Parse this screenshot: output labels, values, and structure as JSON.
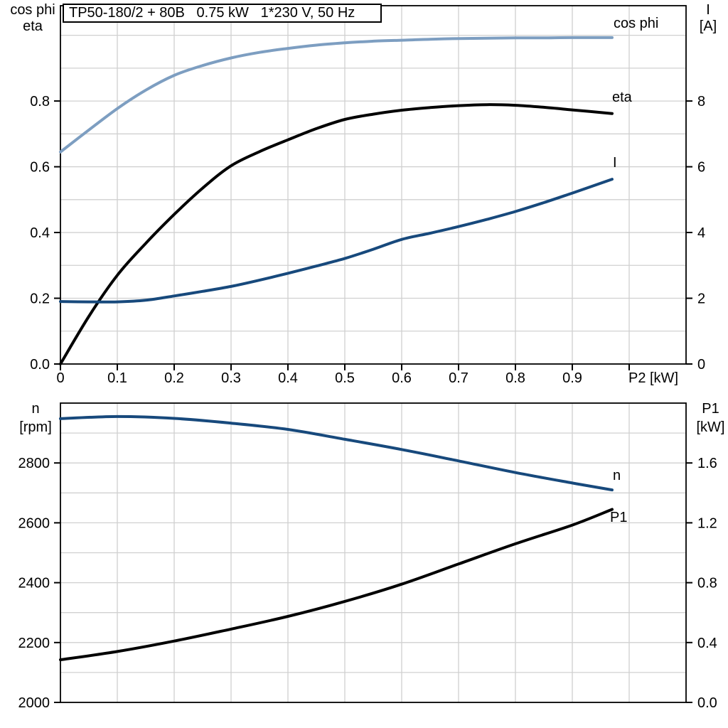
{
  "header": {
    "title": "TP50-180/2 + 80B   0.75 kW   1*230 V, 50 Hz"
  },
  "colors": {
    "light_blue": "#7D9EC1",
    "dark_blue": "#17497C",
    "black": "#000000",
    "grid": "#D0D0D0"
  },
  "chart_data": [
    {
      "id": "top",
      "type": "line",
      "title": "TP50-180/2 + 80B   0.75 kW   1*230 V, 50 Hz",
      "x": {
        "label": "P2 [kW]",
        "min": 0,
        "max": 1.1,
        "grid_step": 0.1,
        "ticks": [
          0,
          0.1,
          0.2,
          0.3,
          0.4,
          0.5,
          0.6,
          0.7,
          0.8,
          0.9,
          1.0
        ],
        "tick_labels": [
          "0",
          "0.1",
          "0.2",
          "0.3",
          "0.4",
          "0.5",
          "0.6",
          "0.7",
          "0.8",
          "0.9",
          ""
        ]
      },
      "y_left": {
        "title_lines": [
          "cos phi",
          "eta"
        ],
        "min": 0,
        "max": 1.09,
        "grid_step": 0.1,
        "ticks": [
          0,
          0.2,
          0.4,
          0.6,
          0.8
        ],
        "tick_labels": [
          "0.0",
          "0.2",
          "0.4",
          "0.6",
          "0.8"
        ]
      },
      "y_right": {
        "title_lines": [
          "I",
          "[A]"
        ],
        "min": 0,
        "max": 10.9,
        "ticks": [
          0,
          2,
          4,
          6,
          8
        ],
        "tick_labels": [
          "0",
          "2",
          "4",
          "6",
          "8"
        ]
      },
      "series": [
        {
          "name": "cos phi",
          "axis": "left",
          "color": "#7D9EC1",
          "x": [
            0,
            0.05,
            0.1,
            0.15,
            0.2,
            0.25,
            0.3,
            0.35,
            0.4,
            0.45,
            0.5,
            0.55,
            0.6,
            0.65,
            0.7,
            0.75,
            0.8,
            0.85,
            0.9,
            0.97
          ],
          "y": [
            0.645,
            0.712,
            0.777,
            0.833,
            0.878,
            0.908,
            0.931,
            0.948,
            0.96,
            0.97,
            0.977,
            0.982,
            0.985,
            0.988,
            0.99,
            0.991,
            0.992,
            0.992,
            0.993,
            0.993
          ]
        },
        {
          "name": "eta",
          "axis": "left",
          "color": "#000000",
          "x": [
            0,
            0.05,
            0.1,
            0.15,
            0.2,
            0.25,
            0.3,
            0.35,
            0.4,
            0.45,
            0.5,
            0.55,
            0.6,
            0.65,
            0.7,
            0.75,
            0.8,
            0.85,
            0.9,
            0.97
          ],
          "y": [
            0,
            0.145,
            0.27,
            0.367,
            0.455,
            0.535,
            0.603,
            0.646,
            0.682,
            0.716,
            0.744,
            0.76,
            0.772,
            0.78,
            0.786,
            0.789,
            0.787,
            0.781,
            0.773,
            0.762
          ]
        },
        {
          "name": "I",
          "axis": "right",
          "color": "#17497C",
          "x": [
            0,
            0.05,
            0.1,
            0.15,
            0.2,
            0.25,
            0.3,
            0.35,
            0.4,
            0.45,
            0.5,
            0.55,
            0.6,
            0.65,
            0.7,
            0.75,
            0.8,
            0.85,
            0.9,
            0.97
          ],
          "y": [
            1.9,
            1.89,
            1.89,
            1.94,
            2.07,
            2.21,
            2.36,
            2.55,
            2.76,
            2.98,
            3.21,
            3.49,
            3.79,
            3.98,
            4.18,
            4.4,
            4.64,
            4.91,
            5.2,
            5.62
          ]
        }
      ]
    },
    {
      "id": "bottom",
      "type": "line",
      "title": "",
      "x": {
        "label": "",
        "min": 0,
        "max": 1.1,
        "grid_step": 0.1,
        "ticks": [],
        "tick_labels": []
      },
      "y_left": {
        "title_lines": [
          "n",
          "[rpm]"
        ],
        "min": 2000,
        "max": 3000,
        "grid_step": 100,
        "ticks": [
          2000,
          2200,
          2400,
          2600,
          2800
        ],
        "tick_labels": [
          "2000",
          "2200",
          "2400",
          "2600",
          "2800"
        ]
      },
      "y_right": {
        "title_lines": [
          "P1",
          "[kW]"
        ],
        "min": 0,
        "max": 2.0,
        "ticks": [
          0,
          0.4,
          0.8,
          1.2,
          1.6
        ],
        "tick_labels": [
          "0.0",
          "0.4",
          "0.8",
          "1.2",
          "1.6"
        ]
      },
      "series": [
        {
          "name": "n",
          "axis": "left",
          "color": "#17497C",
          "x": [
            0,
            0.1,
            0.2,
            0.3,
            0.4,
            0.5,
            0.6,
            0.7,
            0.8,
            0.9,
            0.97
          ],
          "y": [
            2948,
            2955,
            2949,
            2933,
            2912,
            2879,
            2845,
            2807,
            2768,
            2733,
            2710
          ]
        },
        {
          "name": "P1",
          "axis": "right",
          "color": "#000000",
          "x": [
            0,
            0.1,
            0.2,
            0.3,
            0.4,
            0.5,
            0.6,
            0.7,
            0.8,
            0.9,
            0.97
          ],
          "y": [
            0.285,
            0.34,
            0.41,
            0.49,
            0.575,
            0.675,
            0.79,
            0.925,
            1.06,
            1.185,
            1.29
          ]
        }
      ]
    }
  ]
}
